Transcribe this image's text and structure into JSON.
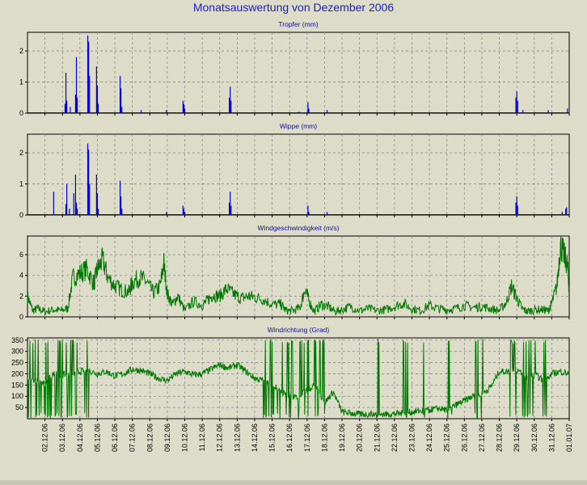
{
  "page": {
    "title": "Monatsauswertung von Dezember 2006",
    "colors": {
      "background": "#dcdcc8",
      "rain": "#0000cc",
      "wind": "#007700",
      "grid": "#909090",
      "title": "#1c1cd0"
    }
  },
  "chart_data": [
    {
      "type": "line",
      "title": "Tropfer (mm)",
      "ylim": [
        0,
        2.6
      ],
      "yticks": [
        0,
        1,
        2
      ],
      "grid": true,
      "series": [
        {
          "color": "#0000cc",
          "style": "spikes",
          "x": [
            3.15,
            3.2,
            3.25,
            3.45,
            3.75,
            3.8,
            3.85,
            4.45,
            4.5,
            4.55,
            4.95,
            5.0,
            5.05,
            6.3,
            6.35,
            6.4,
            7.5,
            8.95,
            9.9,
            9.95,
            10.0,
            12.55,
            12.6,
            12.65,
            16.55,
            17.05,
            17.1,
            18.15,
            28.95,
            29.0,
            29.05,
            29.35,
            30.8,
            31.9
          ],
          "y": [
            0.3,
            1.3,
            0.4,
            0.2,
            0.6,
            1.8,
            0.5,
            2.5,
            2.3,
            1.2,
            1.5,
            0.9,
            0.3,
            1.2,
            0.8,
            0.2,
            0.1,
            0.1,
            0.4,
            0.3,
            0.15,
            0.5,
            0.85,
            0.4,
            0.05,
            0.35,
            0.15,
            0.1,
            0.5,
            0.7,
            0.4,
            0.1,
            0.1,
            0.15
          ]
        }
      ]
    },
    {
      "type": "line",
      "title": "Wippe (mm)",
      "ylim": [
        0,
        2.6
      ],
      "yticks": [
        0,
        1,
        2
      ],
      "grid": true,
      "series": [
        {
          "color": "#0000cc",
          "style": "spikes",
          "x": [
            2.5,
            3.2,
            3.25,
            3.4,
            3.65,
            3.75,
            3.8,
            3.85,
            4.45,
            4.5,
            4.55,
            4.95,
            5.0,
            5.05,
            6.3,
            6.35,
            6.4,
            8.95,
            9.9,
            9.95,
            10.0,
            12.55,
            12.6,
            12.65,
            17.05,
            17.1,
            18.15,
            28.95,
            29.0,
            29.05,
            31.6,
            31.8,
            31.85
          ],
          "y": [
            0.75,
            0.35,
            1.0,
            0.2,
            0.7,
            1.3,
            0.4,
            0.2,
            2.3,
            2.1,
            1.0,
            1.3,
            0.7,
            0.2,
            1.1,
            0.6,
            0.2,
            0.1,
            0.3,
            0.2,
            0.1,
            0.4,
            0.75,
            0.3,
            0.3,
            0.1,
            0.1,
            0.4,
            0.6,
            0.3,
            0.1,
            0.2,
            0.25
          ]
        }
      ]
    },
    {
      "type": "line",
      "title": "Windgeschwindigkeit (m/s)",
      "ylim": [
        0,
        7.8
      ],
      "yticks": [
        0,
        2,
        4,
        6
      ],
      "grid": true,
      "series": [
        {
          "color": "#007700",
          "style": "noisy",
          "x": [
            1,
            1.3,
            1.6,
            2,
            2.5,
            2.9,
            3.3,
            3.6,
            4.0,
            4.4,
            4.8,
            5.0,
            5.3,
            5.6,
            6.0,
            6.4,
            6.8,
            7.0,
            7.4,
            7.8,
            8.2,
            8.6,
            8.8,
            9.0,
            9.3,
            9.6,
            10.0,
            10.5,
            11.0,
            11.3,
            11.6,
            12.0,
            12.4,
            12.8,
            13.2,
            13.6,
            14.0,
            14.5,
            15.0,
            15.5,
            15.8,
            16.2,
            16.6,
            16.9,
            17.1,
            17.4,
            17.8,
            18.2,
            18.6,
            19.0,
            19.5,
            20.0,
            20.5,
            21.0,
            21.5,
            22.0,
            22.5,
            23.0,
            23.5,
            24.0,
            24.5,
            25.0,
            25.5,
            26.0,
            26.5,
            27.0,
            27.5,
            28.0,
            28.4,
            28.7,
            29.0,
            29.3,
            29.6,
            30.0,
            30.5,
            30.8,
            31.0,
            31.3,
            31.5,
            31.7,
            31.9,
            32.0
          ],
          "y": [
            2.0,
            0.6,
            0.8,
            0.5,
            0.7,
            0.6,
            0.8,
            3.8,
            4.2,
            4.6,
            3.2,
            4.6,
            5.5,
            3.8,
            3.0,
            2.6,
            2.4,
            3.3,
            3.8,
            3.4,
            2.3,
            3.0,
            5.2,
            2.2,
            1.2,
            2.0,
            0.6,
            1.5,
            1.1,
            1.6,
            2.1,
            2.0,
            2.7,
            2.2,
            1.8,
            2.0,
            1.9,
            1.7,
            1.2,
            1.2,
            0.6,
            0.6,
            0.9,
            2.8,
            1.6,
            0.5,
            1.2,
            1.0,
            0.5,
            0.7,
            1.0,
            0.6,
            0.8,
            0.6,
            0.7,
            1.0,
            1.3,
            0.8,
            0.6,
            1.1,
            0.8,
            0.7,
            0.8,
            1.1,
            0.9,
            1.0,
            0.8,
            0.6,
            1.4,
            3.0,
            1.8,
            0.8,
            0.5,
            0.7,
            0.7,
            0.6,
            1.3,
            3.0,
            7.0,
            6.0,
            5.0,
            2.5
          ]
        }
      ]
    },
    {
      "type": "line",
      "title": "Windrichtung (Grad)",
      "ylim": [
        0,
        360
      ],
      "yticks": [
        50,
        100,
        150,
        200,
        250,
        300,
        350
      ],
      "grid": true,
      "series": [
        {
          "color": "#007700",
          "style": "direction",
          "x": [
            1,
            1.5,
            2,
            2.5,
            3.0,
            3.5,
            4.0,
            4.5,
            5.0,
            5.5,
            6.0,
            6.5,
            7.0,
            7.5,
            8.0,
            8.5,
            9.0,
            9.5,
            10.0,
            10.5,
            11.0,
            11.5,
            12.0,
            12.5,
            13.0,
            13.5,
            14.0,
            14.5,
            15.0,
            15.5,
            16.0,
            16.5,
            17.0,
            17.5,
            18.0,
            18.5,
            19.0,
            19.5,
            20.0,
            20.5,
            21.0,
            21.5,
            22.0,
            22.5,
            23.0,
            23.5,
            24.0,
            24.5,
            25.0,
            25.5,
            26.0,
            26.5,
            27.0,
            27.5,
            28.0,
            28.5,
            29.0,
            29.5,
            30.0,
            30.5,
            31.0,
            31.5,
            32.0
          ],
          "y": [
            180,
            170,
            160,
            200,
            195,
            200,
            210,
            215,
            200,
            210,
            190,
            200,
            220,
            215,
            200,
            180,
            170,
            200,
            210,
            195,
            200,
            220,
            240,
            225,
            240,
            210,
            180,
            170,
            150,
            120,
            100,
            90,
            130,
            150,
            70,
            120,
            30,
            25,
            20,
            20,
            25,
            20,
            22,
            25,
            30,
            35,
            40,
            45,
            40,
            60,
            80,
            100,
            110,
            140,
            210,
            210,
            220,
            180,
            200,
            170,
            200,
            210,
            200
          ]
        }
      ],
      "xticks": [
        "02.12.06",
        "03.12.06",
        "04.12.06",
        "05.12.06",
        "06.12.06",
        "07.12.06",
        "08.12.06",
        "09.12.06",
        "10.12.06",
        "11.12.06",
        "12.12.06",
        "13.12.06",
        "14.12.06",
        "15.12.06",
        "16.12.06",
        "17.12.06",
        "18.12.06",
        "19.12.06",
        "20.12.06",
        "21.12.06",
        "22.12.06",
        "23.12.06",
        "24.12.06",
        "25.12.06",
        "26.12.06",
        "27.12.06",
        "28.12.06",
        "29.12.06",
        "30.12.06",
        "31.12.06",
        "01.01.07"
      ]
    }
  ]
}
